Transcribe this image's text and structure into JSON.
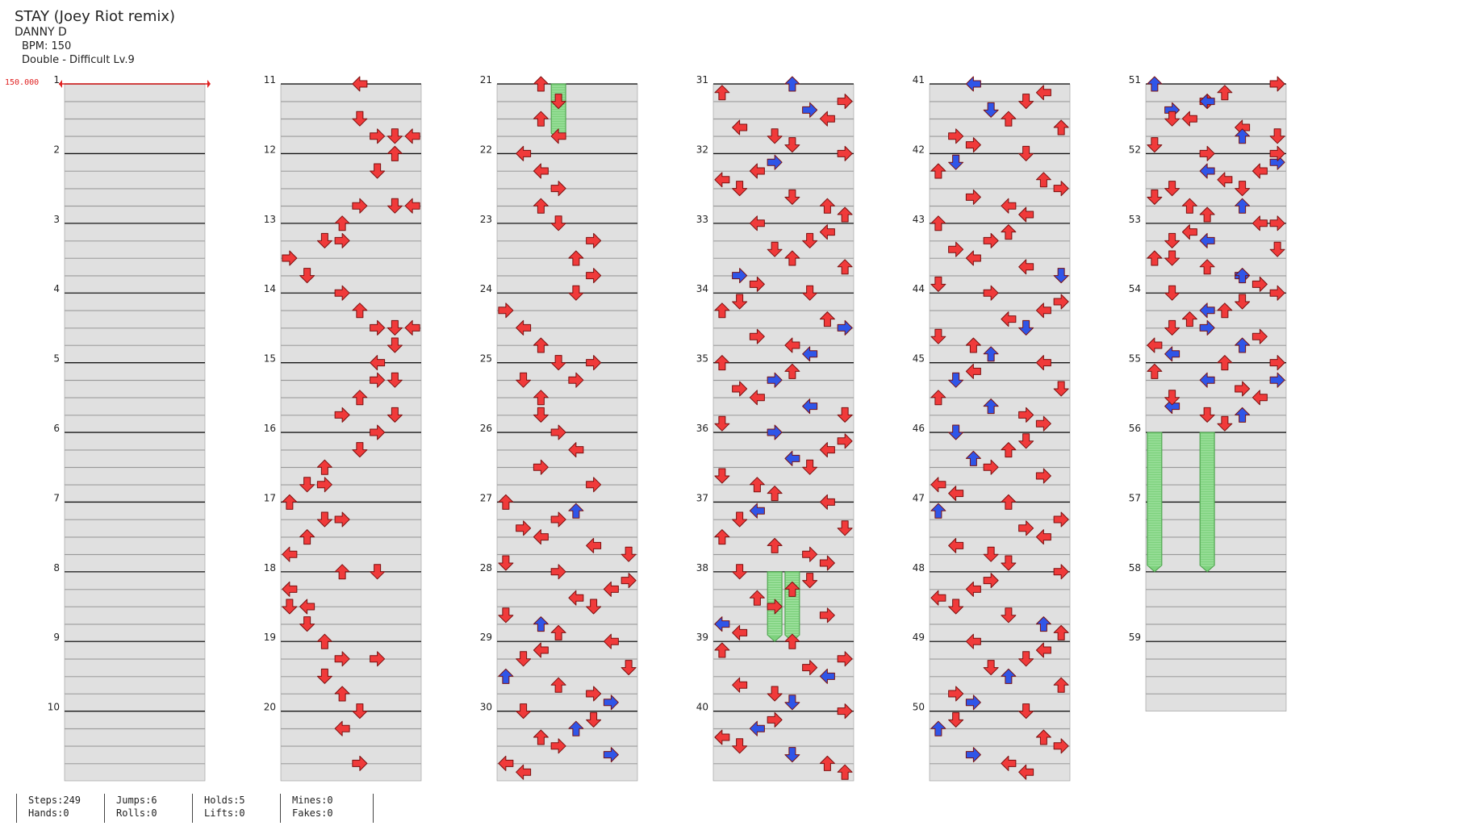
{
  "song": {
    "title": "STAY (Joey Riot remix)",
    "artist": "DANNY D",
    "bpm_label": "BPM: 150",
    "mode_label": "Double - Difficult Lv.9"
  },
  "bpm_marker": "150.000",
  "colors": {
    "red": "#f03a3a",
    "blue": "#2f55e8",
    "hold": "#7ed27e"
  },
  "measure_numbers": [
    "1",
    "2",
    "3",
    "4",
    "5",
    "6",
    "7",
    "8",
    "9",
    "10",
    "11",
    "12",
    "13",
    "14",
    "15",
    "16",
    "17",
    "18",
    "19",
    "20",
    "21",
    "22",
    "23",
    "24",
    "25",
    "26",
    "27",
    "28",
    "29",
    "30",
    "31",
    "32",
    "33",
    "34",
    "35",
    "36",
    "37",
    "38",
    "39",
    "40",
    "41",
    "42",
    "43",
    "44",
    "45",
    "46",
    "47",
    "48",
    "49",
    "50",
    "51",
    "52",
    "53",
    "54",
    "55",
    "56",
    "57",
    "58",
    "59"
  ],
  "notes": [
    [
      10.0,
      4,
      "left",
      "red"
    ],
    [
      10.5,
      4,
      "down",
      "red"
    ],
    [
      10.75,
      5,
      "right",
      "red"
    ],
    [
      10.75,
      6,
      "down",
      "red"
    ],
    [
      10.75,
      7,
      "left",
      "red"
    ],
    [
      11.0,
      6,
      "up",
      "red"
    ],
    [
      11.25,
      5,
      "down",
      "red"
    ],
    [
      11.75,
      4,
      "right",
      "red"
    ],
    [
      11.75,
      6,
      "down",
      "red"
    ],
    [
      11.75,
      7,
      "left",
      "red"
    ],
    [
      12.0,
      3,
      "up",
      "red"
    ],
    [
      12.25,
      2,
      "down",
      "red"
    ],
    [
      12.25,
      3,
      "right",
      "red"
    ],
    [
      12.5,
      0,
      "right",
      "red"
    ],
    [
      12.75,
      1,
      "down",
      "red"
    ],
    [
      13.0,
      3,
      "right",
      "red"
    ],
    [
      13.25,
      4,
      "up",
      "red"
    ],
    [
      13.5,
      5,
      "right",
      "red"
    ],
    [
      13.5,
      6,
      "down",
      "red"
    ],
    [
      13.5,
      7,
      "left",
      "red"
    ],
    [
      13.75,
      6,
      "down",
      "red"
    ],
    [
      14.0,
      5,
      "left",
      "red"
    ],
    [
      14.25,
      5,
      "right",
      "red"
    ],
    [
      14.25,
      6,
      "down",
      "red"
    ],
    [
      14.5,
      4,
      "up",
      "red"
    ],
    [
      14.75,
      3,
      "right",
      "red"
    ],
    [
      14.75,
      6,
      "down",
      "red"
    ],
    [
      15.0,
      5,
      "right",
      "red"
    ],
    [
      15.25,
      4,
      "down",
      "red"
    ],
    [
      15.5,
      2,
      "up",
      "red"
    ],
    [
      15.75,
      1,
      "down",
      "red"
    ],
    [
      15.75,
      2,
      "right",
      "red"
    ],
    [
      16.0,
      0,
      "up",
      "red"
    ],
    [
      16.25,
      2,
      "down",
      "red"
    ],
    [
      16.25,
      3,
      "right",
      "red"
    ],
    [
      16.5,
      1,
      "up",
      "red"
    ],
    [
      16.75,
      0,
      "left",
      "red"
    ],
    [
      17.0,
      3,
      "up",
      "red"
    ],
    [
      17.0,
      5,
      "down",
      "red"
    ],
    [
      17.25,
      0,
      "left",
      "red"
    ],
    [
      17.5,
      0,
      "down",
      "red"
    ],
    [
      17.5,
      1,
      "left",
      "red"
    ],
    [
      17.75,
      1,
      "down",
      "red"
    ],
    [
      18.0,
      2,
      "up",
      "red"
    ],
    [
      18.25,
      3,
      "right",
      "red"
    ],
    [
      18.25,
      5,
      "right",
      "red"
    ],
    [
      18.5,
      2,
      "down",
      "red"
    ],
    [
      18.75,
      3,
      "up",
      "red"
    ],
    [
      19.0,
      4,
      "down",
      "red"
    ],
    [
      19.25,
      3,
      "left",
      "red"
    ],
    [
      19.75,
      4,
      "right",
      "red"
    ],
    [
      20.0,
      2,
      "up",
      "red"
    ],
    [
      20.25,
      3,
      "down",
      "red"
    ],
    [
      20.5,
      2,
      "up",
      "red"
    ],
    [
      20.75,
      3,
      "left",
      "red"
    ],
    [
      21.0,
      1,
      "left",
      "red"
    ],
    [
      21.25,
      2,
      "left",
      "red"
    ],
    [
      21.5,
      3,
      "right",
      "red"
    ],
    [
      21.75,
      2,
      "up",
      "red"
    ],
    [
      22.0,
      3,
      "down",
      "red"
    ],
    [
      22.25,
      5,
      "right",
      "red"
    ],
    [
      22.5,
      4,
      "up",
      "red"
    ],
    [
      22.75,
      5,
      "right",
      "red"
    ],
    [
      23.0,
      4,
      "down",
      "red"
    ],
    [
      23.25,
      0,
      "right",
      "red"
    ],
    [
      23.5,
      1,
      "left",
      "red"
    ],
    [
      23.75,
      2,
      "up",
      "red"
    ],
    [
      24.0,
      3,
      "down",
      "red"
    ],
    [
      24.0,
      5,
      "right",
      "red"
    ],
    [
      24.25,
      1,
      "down",
      "red"
    ],
    [
      24.25,
      4,
      "right",
      "red"
    ],
    [
      24.5,
      2,
      "up",
      "red"
    ],
    [
      24.75,
      2,
      "down",
      "red"
    ],
    [
      25.0,
      3,
      "right",
      "red"
    ],
    [
      25.25,
      4,
      "left",
      "red"
    ],
    [
      25.5,
      2,
      "right",
      "red"
    ],
    [
      25.75,
      5,
      "right",
      "red"
    ]
  ],
  "stats": [
    [
      "Steps:249",
      "Hands:0"
    ],
    [
      "Jumps:6",
      "Rolls:0"
    ],
    [
      "Holds:5",
      "Lifts:0"
    ],
    [
      "Mines:0",
      "Fakes:0"
    ]
  ]
}
